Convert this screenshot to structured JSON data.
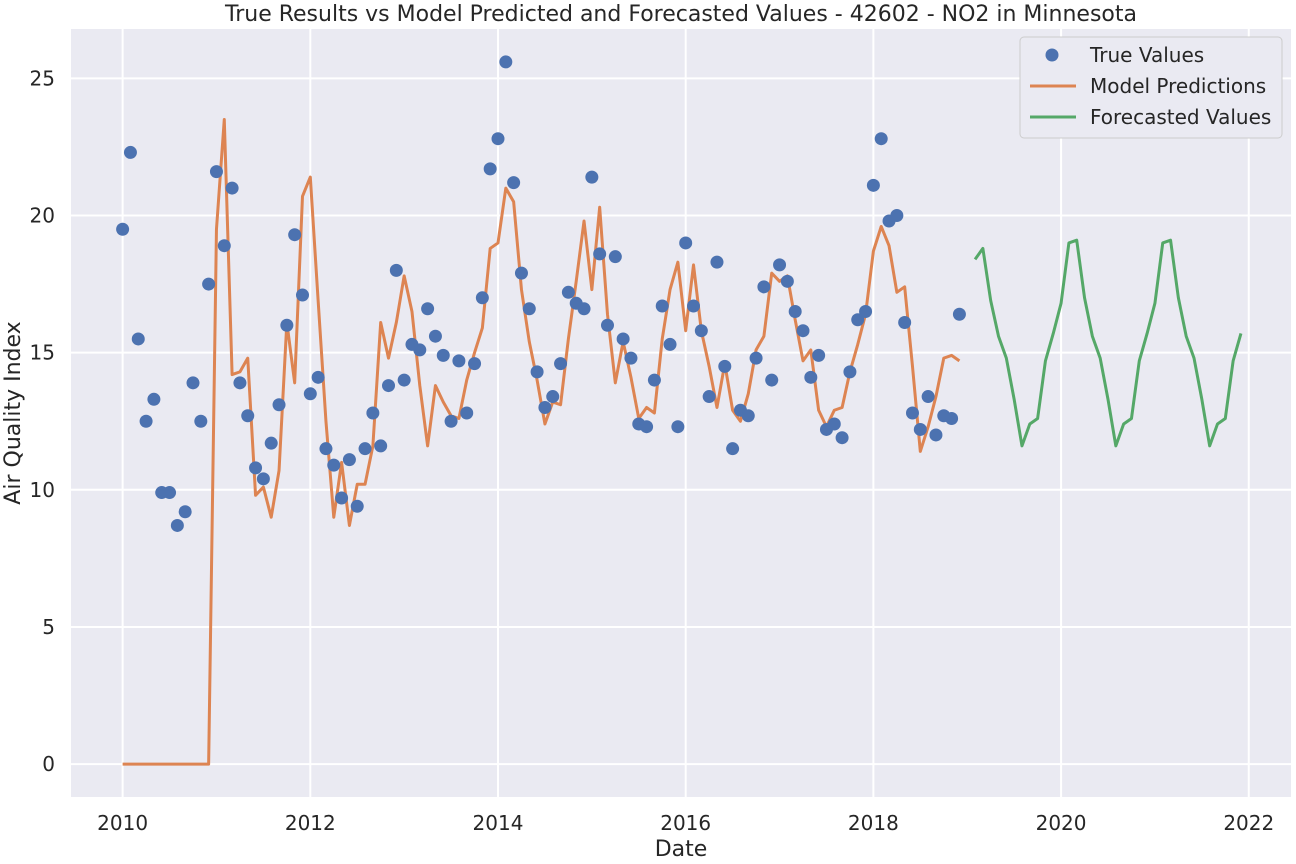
{
  "chart_data": {
    "type": "line",
    "title": "True Results vs Model Predicted and Forecasted Values - 42602 - NO2 in Minnesota",
    "xlabel": "Date",
    "ylabel": "Air Quality Index",
    "xlim": [
      2009.45,
      2022.45
    ],
    "ylim": [
      -1.2,
      26.8
    ],
    "x_ticks": [
      2010,
      2012,
      2014,
      2016,
      2018,
      2020,
      2022
    ],
    "x_tick_labels": [
      "2010",
      "2012",
      "2014",
      "2016",
      "2018",
      "2020",
      "2022"
    ],
    "y_ticks": [
      0,
      5,
      10,
      15,
      20,
      25
    ],
    "y_tick_labels": [
      "0",
      "5",
      "10",
      "15",
      "20",
      "25"
    ],
    "grid": true,
    "legend_position": "top-right",
    "series": [
      {
        "name": "True Values",
        "kind": "scatter",
        "color": "#4c72b0",
        "start": 2010.0,
        "step_months": 1,
        "values": [
          19.5,
          22.3,
          15.5,
          12.5,
          13.3,
          9.9,
          9.9,
          8.7,
          9.2,
          13.9,
          12.5,
          17.5,
          21.6,
          18.9,
          21.0,
          13.9,
          12.7,
          10.8,
          10.4,
          11.7,
          13.1,
          16.0,
          19.3,
          17.1,
          13.5,
          14.1,
          11.5,
          10.9,
          9.7,
          11.1,
          9.4,
          11.5,
          12.8,
          11.6,
          13.8,
          18.0,
          14.0,
          15.3,
          15.1,
          16.6,
          15.6,
          14.9,
          12.5,
          14.7,
          12.8,
          14.6,
          17.0,
          21.7,
          22.8,
          25.6,
          21.2,
          17.9,
          16.6,
          14.3,
          13.0,
          13.4,
          14.6,
          17.2,
          16.8,
          16.6,
          21.4,
          18.6,
          16.0,
          18.5,
          15.5,
          14.8,
          12.4,
          12.3,
          14.0,
          16.7,
          15.3,
          12.3,
          19.0,
          16.7,
          15.8,
          13.4,
          18.3,
          14.5,
          11.5,
          12.9,
          12.7,
          14.8,
          17.4,
          14.0,
          18.2,
          17.6,
          16.5,
          15.8,
          14.1,
          14.9,
          12.2,
          12.4,
          11.9,
          14.3,
          16.2,
          16.5,
          21.1,
          22.8,
          19.8,
          20.0,
          16.1,
          12.8,
          12.2,
          13.4,
          12.0,
          12.7,
          12.6,
          16.4
        ]
      },
      {
        "name": "Model Predictions",
        "kind": "line",
        "color": "#dd8452",
        "start": 2010.0,
        "step_months": 1,
        "values": [
          0,
          0,
          0,
          0,
          0,
          0,
          0,
          0,
          0,
          0,
          0,
          0,
          19.5,
          23.5,
          14.2,
          14.3,
          14.8,
          9.8,
          10.1,
          9.0,
          10.7,
          16.1,
          13.9,
          20.7,
          21.4,
          16.9,
          12.5,
          9.0,
          11.0,
          8.7,
          10.2,
          10.2,
          11.6,
          16.1,
          14.8,
          16.1,
          17.8,
          16.5,
          13.8,
          11.6,
          13.8,
          13.2,
          12.7,
          12.6,
          14.0,
          15.0,
          15.9,
          18.8,
          19.0,
          21.0,
          20.5,
          17.3,
          15.4,
          14.0,
          12.4,
          13.2,
          13.1,
          15.5,
          17.6,
          19.8,
          17.3,
          20.3,
          16.4,
          13.9,
          15.4,
          14.1,
          12.6,
          13.0,
          12.8,
          15.5,
          17.3,
          18.3,
          15.8,
          18.2,
          15.8,
          14.5,
          13.0,
          14.6,
          12.9,
          12.5,
          13.5,
          15.1,
          15.6,
          17.9,
          17.6,
          17.8,
          16.2,
          14.7,
          15.1,
          12.9,
          12.3,
          12.9,
          13.0,
          14.3,
          15.3,
          16.4,
          18.7,
          19.6,
          18.9,
          17.2,
          17.4,
          14.5,
          11.4,
          12.3,
          13.4,
          14.8,
          14.9,
          14.7
        ]
      },
      {
        "name": "Forecasted Values",
        "kind": "line",
        "color": "#55a868",
        "start": 2019.0833,
        "step_months": 1,
        "values": [
          18.4,
          18.8,
          16.9,
          15.6,
          14.8,
          13.3,
          11.6,
          12.4,
          12.6,
          14.7,
          15.7,
          16.8,
          19.0,
          19.1,
          17.0,
          15.6,
          14.8,
          13.3,
          11.6,
          12.4,
          12.6,
          14.7,
          15.7,
          16.8,
          19.0,
          19.1,
          17.0,
          15.6,
          14.8,
          13.3,
          11.6,
          12.4,
          12.6,
          14.7,
          15.7
        ]
      }
    ]
  }
}
